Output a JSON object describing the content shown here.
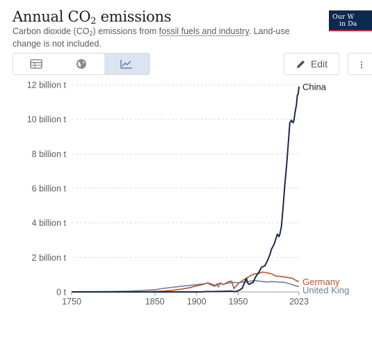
{
  "header": {
    "title_prefix": "Annual CO",
    "title_sub": "2",
    "title_suffix": " emissions",
    "subtitle_part1": "Carbon dioxide (CO",
    "subtitle_sub": "2",
    "subtitle_part2": ") emissions from ",
    "subtitle_link": "fossil fuels and industry",
    "subtitle_part3": ". Land-use change is not included.",
    "logo_line1": "Our W",
    "logo_line2": "in Da"
  },
  "toolbar": {
    "tabs": [
      {
        "icon": "table-icon",
        "active": false
      },
      {
        "icon": "globe-icon",
        "active": false
      },
      {
        "icon": "line-chart-icon",
        "active": true
      }
    ],
    "edit_label": "Edit",
    "edit_icon": "pencil-icon",
    "more_icon": "more-icon"
  },
  "chart_data": {
    "type": "line",
    "title": "Annual CO₂ emissions",
    "ylabel": "",
    "xlabel": "",
    "x_ticks": [
      "1750",
      "1850",
      "1900",
      "1950",
      "2023"
    ],
    "x_tick_values": [
      1750,
      1850,
      1900,
      1950,
      2023
    ],
    "xlim": [
      1750,
      2023
    ],
    "y_ticks": [
      "0 t",
      "2 billion t",
      "4 billion t",
      "6 billion t",
      "8 billion t",
      "10 billion t",
      "12 billion t"
    ],
    "y_tick_values": [
      0,
      2,
      4,
      6,
      8,
      10,
      12
    ],
    "ylim": [
      0,
      12
    ],
    "y_unit": "billion t",
    "grid": "horizontal dashed",
    "legend": "line-end labels",
    "series": [
      {
        "name": "China",
        "color": "#1a2a4a",
        "x": [
          1750,
          1900,
          1908,
          1912,
          1916,
          1920,
          1925,
          1930,
          1935,
          1938,
          1942,
          1945,
          1948,
          1950,
          1952,
          1955,
          1958,
          1960,
          1961,
          1963,
          1965,
          1968,
          1970,
          1972,
          1975,
          1978,
          1980,
          1982,
          1985,
          1988,
          1990,
          1993,
          1995,
          1997,
          1999,
          2000,
          2002,
          2004,
          2006,
          2008,
          2010,
          2012,
          2014,
          2015,
          2016,
          2017,
          2018,
          2019,
          2020,
          2021,
          2022,
          2023
        ],
        "y": [
          0,
          0,
          0.01,
          0.02,
          0.02,
          0.02,
          0.03,
          0.03,
          0.04,
          0.04,
          0.05,
          0.02,
          0.03,
          0.08,
          0.12,
          0.22,
          0.58,
          0.78,
          0.55,
          0.44,
          0.49,
          0.55,
          0.78,
          0.95,
          1.15,
          1.43,
          1.47,
          1.52,
          1.8,
          2.15,
          2.48,
          2.75,
          3.05,
          3.35,
          3.2,
          3.35,
          3.8,
          4.95,
          6.2,
          7.25,
          8.5,
          9.8,
          9.95,
          9.85,
          9.8,
          9.95,
          10.3,
          10.6,
          10.85,
          11.4,
          11.45,
          11.9
        ]
      },
      {
        "name": "Germany",
        "color": "#b0562a",
        "x": [
          1750,
          1800,
          1830,
          1850,
          1860,
          1870,
          1880,
          1890,
          1900,
          1905,
          1910,
          1913,
          1916,
          1918,
          1920,
          1923,
          1925,
          1929,
          1932,
          1935,
          1939,
          1942,
          1945,
          1946,
          1948,
          1950,
          1955,
          1960,
          1965,
          1970,
          1975,
          1979,
          1985,
          1990,
          1995,
          2000,
          2005,
          2010,
          2015,
          2020,
          2023
        ],
        "y": [
          0,
          0.001,
          0.005,
          0.03,
          0.05,
          0.09,
          0.15,
          0.23,
          0.35,
          0.4,
          0.47,
          0.52,
          0.45,
          0.38,
          0.43,
          0.35,
          0.45,
          0.52,
          0.42,
          0.5,
          0.61,
          0.63,
          0.18,
          0.28,
          0.35,
          0.5,
          0.65,
          0.8,
          0.95,
          1.05,
          1.07,
          1.15,
          1.1,
          1.05,
          0.92,
          0.9,
          0.87,
          0.83,
          0.79,
          0.65,
          0.6
        ]
      },
      {
        "name": "United Kingdom",
        "label_text": "United King",
        "color": "#6b7f9a",
        "x": [
          1750,
          1760,
          1780,
          1800,
          1820,
          1840,
          1850,
          1860,
          1870,
          1880,
          1890,
          1900,
          1905,
          1910,
          1913,
          1916,
          1919,
          1921,
          1925,
          1926,
          1929,
          1932,
          1937,
          1940,
          1944,
          1950,
          1955,
          1960,
          1965,
          1970,
          1975,
          1980,
          1985,
          1990,
          1995,
          2000,
          2005,
          2010,
          2015,
          2020,
          2023
        ],
        "y": [
          0.01,
          0.015,
          0.02,
          0.03,
          0.05,
          0.1,
          0.13,
          0.2,
          0.26,
          0.32,
          0.37,
          0.42,
          0.45,
          0.47,
          0.52,
          0.5,
          0.43,
          0.32,
          0.48,
          0.28,
          0.49,
          0.44,
          0.5,
          0.52,
          0.55,
          0.53,
          0.56,
          0.58,
          0.63,
          0.66,
          0.62,
          0.6,
          0.57,
          0.6,
          0.58,
          0.57,
          0.56,
          0.5,
          0.42,
          0.34,
          0.32
        ]
      }
    ]
  }
}
